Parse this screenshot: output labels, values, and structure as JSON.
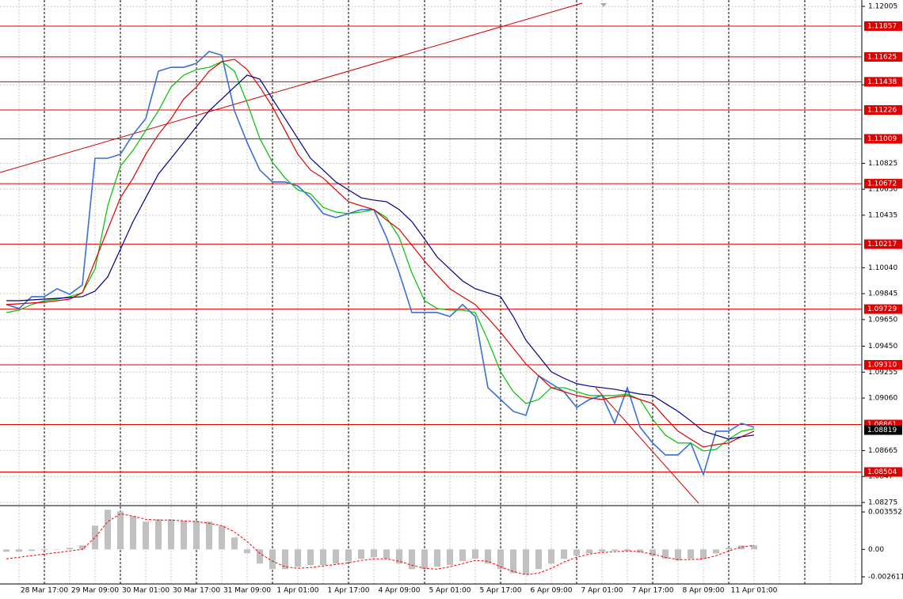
{
  "chart_data": [
    {
      "type": "line",
      "categories": [
        null,
        null,
        null,
        "28 Mar 17:00",
        null,
        null,
        null,
        "29 Mar 09:00",
        null,
        null,
        null,
        "30 Mar 01:00",
        null,
        null,
        null,
        "30 Mar 17:00",
        null,
        null,
        null,
        "31 Mar 09:00",
        null,
        null,
        null,
        "1 Apr 01:00",
        null,
        null,
        null,
        "1 Apr 17:00",
        null,
        null,
        null,
        "4 Apr 09:00",
        null,
        null,
        null,
        "5 Apr 01:00",
        null,
        null,
        null,
        "5 Apr 17:00",
        null,
        null,
        null,
        "6 Apr 09:00",
        null,
        null,
        null,
        "7 Apr 01:00",
        null,
        null,
        null,
        "7 Apr 17:00",
        null,
        null,
        null,
        "8 Apr 09:00",
        null,
        null,
        null,
        "11 Apr 01:00"
      ],
      "series": [
        {
          "color": "#3a6fd8",
          "values": [
            1.09763,
            1.09733,
            1.09822,
            1.09822,
            1.09882,
            1.0984,
            1.09911,
            1.10863,
            1.10863,
            1.10893,
            1.11042,
            1.11161,
            1.11518,
            1.11547,
            1.11547,
            1.11577,
            1.11666,
            1.11637,
            1.1122,
            1.10982,
            1.10774,
            1.10685,
            1.10685,
            1.10655,
            1.10566,
            1.10447,
            1.10417,
            1.10447,
            1.10477,
            1.10477,
            1.10268,
            1.10001,
            1.09703,
            1.09703,
            1.09703,
            1.09673,
            1.09763,
            1.09673,
            1.09138,
            1.09049,
            1.0896,
            1.0893,
            1.09227,
            1.09168,
            1.09108,
            1.08989,
            1.09049,
            1.09079,
            1.0887,
            1.09138,
            1.08841,
            1.08722,
            1.08632,
            1.08632,
            1.08722,
            1.08484,
            1.08811,
            1.08811,
            1.0887,
            1.08841
          ]
        },
        {
          "color": "#00c000",
          "values": [
            1.09703,
            1.09721,
            1.09763,
            1.09792,
            1.09804,
            1.09822,
            1.09852,
            1.1003,
            1.10506,
            1.10804,
            1.10923,
            1.11071,
            1.1122,
            1.11399,
            1.11488,
            1.1153,
            1.11547,
            1.11589,
            1.11518,
            1.1128,
            1.11012,
            1.10833,
            1.10714,
            1.10625,
            1.10596,
            1.10494,
            1.10459,
            1.10447,
            1.10459,
            1.10477,
            1.10417,
            1.10268,
            1.10001,
            1.09792,
            1.09733,
            1.09721,
            1.09721,
            1.09703,
            1.09495,
            1.09257,
            1.09108,
            1.09019,
            1.09049,
            1.09138,
            1.09138,
            1.09108,
            1.09079,
            1.09079,
            1.09079,
            1.0909,
            1.09049,
            1.089,
            1.08781,
            1.08722,
            1.08722,
            1.08662,
            1.08674,
            1.08751,
            1.08811,
            1.08829
          ]
        },
        {
          "color": "#e00000",
          "values": [
            1.09763,
            1.09769,
            1.09775,
            1.0978,
            1.09792,
            1.09804,
            1.09852,
            1.1009,
            1.10328,
            1.10566,
            1.10714,
            1.10893,
            1.11042,
            1.11161,
            1.11309,
            1.11399,
            1.11518,
            1.11589,
            1.11607,
            1.1153,
            1.11399,
            1.1125,
            1.11071,
            1.10893,
            1.10774,
            1.10714,
            1.10625,
            1.10536,
            1.10506,
            1.10477,
            1.10399,
            1.10328,
            1.10209,
            1.1009,
            1.09983,
            1.09882,
            1.09822,
            1.09763,
            1.09661,
            1.09554,
            1.09435,
            1.09316,
            1.09227,
            1.09138,
            1.09108,
            1.09079,
            1.09061,
            1.09049,
            1.09067,
            1.09079,
            1.09049,
            1.09019,
            1.08912,
            1.08811,
            1.08751,
            1.08692,
            1.0871,
            1.08722,
            1.08769,
            1.08811
          ]
        },
        {
          "color": "#00008b",
          "values": [
            1.09792,
            1.09792,
            1.09798,
            1.09804,
            1.0981,
            1.09816,
            1.09822,
            1.09864,
            1.09971,
            1.10179,
            1.10387,
            1.10566,
            1.10744,
            1.10863,
            1.10982,
            1.11101,
            1.1122,
            1.11309,
            1.11399,
            1.11488,
            1.11458,
            1.11309,
            1.11161,
            1.11012,
            1.10863,
            1.10774,
            1.10685,
            1.10625,
            1.10566,
            1.10548,
            1.10536,
            1.10477,
            1.10387,
            1.10256,
            1.1012,
            1.1003,
            1.09941,
            1.09882,
            1.09852,
            1.09822,
            1.09673,
            1.09495,
            1.09376,
            1.09257,
            1.09209,
            1.09168,
            1.0915,
            1.09138,
            1.09126,
            1.09108,
            1.0909,
            1.09079,
            1.09019,
            1.0896,
            1.08888,
            1.08811,
            1.08781,
            1.08751,
            1.08769,
            1.08781
          ]
        }
      ],
      "ylim": [
        1.08257,
        1.12053
      ],
      "yticks": [
        1.12005,
        1.11415,
        1.10825,
        {
          "value": 1.1063,
          "label": "1.10630"
        },
        1.10435,
        {
          "value": 1.1004,
          "label": "1.10040"
        },
        1.09845,
        {
          "value": 1.0965,
          "label": "1.09650"
        },
        {
          "value": 1.0945,
          "label": "1.09450"
        },
        1.09255,
        {
          "value": 1.0906,
          "label": "1.09060"
        },
        1.08665,
        1.0847,
        1.08275
      ],
      "grid": true,
      "level_color": "#e00000",
      "levels": [
        1.11857,
        1.11625,
        1.11438,
        1.11226,
        1.11009,
        1.10672,
        1.10217,
        1.09729,
        {
          "value": 1.0931,
          "label": "1.09310"
        },
        1.08861,
        1.08504
      ],
      "current_price": 1.08819
    },
    {
      "type": "macd",
      "series": [
        {
          "color": "#c0c0c0",
          "values": [
            -0.000225,
            -0.000225,
            -0.00015,
            -7.5e-05,
            0,
            0.00015,
            0.000376,
            0.002255,
            0.003758,
            0.003608,
            0.003157,
            0.002631,
            0.002856,
            0.002856,
            0.002706,
            0.002706,
            0.002631,
            0.002255,
            0.001127,
            -0.000376,
            -0.001353,
            -0.001879,
            -0.001879,
            -0.001654,
            -0.001503,
            -0.001503,
            -0.001353,
            -0.001127,
            -0.000902,
            -0.000752,
            -0.000902,
            -0.001353,
            -0.001879,
            -0.001879,
            -0.001654,
            -0.001503,
            -0.001127,
            -0.000902,
            -0.001353,
            -0.001879,
            -0.002255,
            -0.002405,
            -0.001879,
            -0.001353,
            -0.000902,
            -0.000601,
            -0.000376,
            -0.000225,
            -0.00015,
            -0.00015,
            -0.000301,
            -0.000601,
            -0.000902,
            -0.001052,
            -0.000902,
            -0.000902,
            -0.000376,
            0.00015,
            0.000376,
            0.000376
          ]
        },
        {
          "color": "#ff0000",
          "values": [
            -0.000902,
            -0.000752,
            -0.000601,
            -0.000451,
            -0.000301,
            -0.00015,
            0,
            0.001127,
            0.002631,
            0.003382,
            0.003157,
            0.002856,
            0.002781,
            0.002781,
            0.002706,
            0.002631,
            0.00248,
            0.002255,
            0.001654,
            0.000752,
            -0.000376,
            -0.001127,
            -0.001654,
            -0.001804,
            -0.001729,
            -0.001578,
            -0.001428,
            -0.001278,
            -0.001052,
            -0.000902,
            -0.000902,
            -0.001127,
            -0.001503,
            -0.001804,
            -0.001879,
            -0.001654,
            -0.001353,
            -0.001052,
            -0.001127,
            -0.001654,
            -0.002104,
            -0.002405,
            -0.002255,
            -0.001804,
            -0.001203,
            -0.000752,
            -0.000451,
            -0.000301,
            -0.000225,
            -0.00015,
            -0.000225,
            -0.000451,
            -0.000752,
            -0.000977,
            -0.000977,
            -0.000902,
            -0.000601,
            -0.00015,
            0.000225,
            0.000376
          ]
        }
      ],
      "ylim": [
        -0.003137,
        0.004078
      ],
      "yticks": [
        0.003552,
        {
          "value": 0,
          "label": "0.00"
        },
        -0.002611
      ]
    }
  ]
}
